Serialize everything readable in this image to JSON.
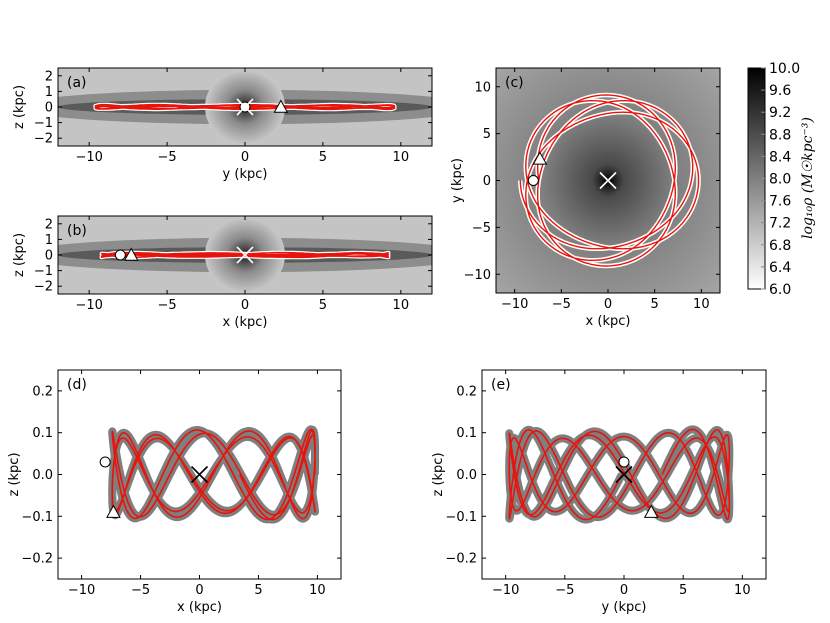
{
  "chart_data": [
    {
      "panel": "(a)",
      "type": "line",
      "xlabel": "y (kpc)",
      "ylabel": "z (kpc)",
      "xlim": [
        -12,
        12
      ],
      "ylim": [
        -2.5,
        2.5
      ],
      "xticks": [
        -10,
        -5,
        0,
        5,
        10
      ],
      "yticks": [
        -2,
        -1,
        0,
        1,
        2
      ],
      "background": "density-map",
      "markers": [
        {
          "shape": "circle",
          "x": 0,
          "y": 0
        },
        {
          "shape": "x",
          "x": 0,
          "y": 0
        },
        {
          "shape": "triangle",
          "x": 2.3,
          "y": 0
        }
      ]
    },
    {
      "panel": "(b)",
      "type": "line",
      "xlabel": "x (kpc)",
      "ylabel": "z (kpc)",
      "xlim": [
        -12,
        12
      ],
      "ylim": [
        -2.5,
        2.5
      ],
      "xticks": [
        -10,
        -5,
        0,
        5,
        10
      ],
      "yticks": [
        -2,
        -1,
        0,
        1,
        2
      ],
      "background": "density-map",
      "markers": [
        {
          "shape": "circle",
          "x": -8,
          "y": 0
        },
        {
          "shape": "x",
          "x": 0,
          "y": 0
        },
        {
          "shape": "triangle",
          "x": -7.3,
          "y": 0
        }
      ]
    },
    {
      "panel": "(c)",
      "type": "line",
      "xlabel": "x (kpc)",
      "ylabel": "y (kpc)",
      "xlim": [
        -12,
        12
      ],
      "ylim": [
        -12,
        12
      ],
      "xticks": [
        -10,
        -5,
        0,
        5,
        10
      ],
      "yticks": [
        -10,
        -5,
        0,
        5,
        10
      ],
      "background": "density-map",
      "markers": [
        {
          "shape": "circle",
          "x": -8,
          "y": 0
        },
        {
          "shape": "x",
          "x": 0,
          "y": 0
        },
        {
          "shape": "triangle",
          "x": -7.3,
          "y": 2.3
        }
      ]
    },
    {
      "panel": "(d)",
      "type": "line",
      "xlabel": "x (kpc)",
      "ylabel": "z (kpc)",
      "xlim": [
        -12,
        12
      ],
      "ylim": [
        -0.25,
        0.25
      ],
      "xticks": [
        -10,
        -5,
        0,
        5,
        10
      ],
      "yticks": [
        -0.2,
        -0.1,
        0.0,
        0.1,
        0.2
      ],
      "markers": [
        {
          "shape": "circle",
          "x": -8,
          "y": 0.03
        },
        {
          "shape": "x",
          "x": 0,
          "y": 0
        },
        {
          "shape": "triangle",
          "x": -7.3,
          "y": -0.09
        }
      ]
    },
    {
      "panel": "(e)",
      "type": "line",
      "xlabel": "y (kpc)",
      "ylabel": "z (kpc)",
      "xlim": [
        -12,
        12
      ],
      "ylim": [
        -0.25,
        0.25
      ],
      "xticks": [
        -10,
        -5,
        0,
        5,
        10
      ],
      "yticks": [
        -0.2,
        -0.1,
        0.0,
        0.1,
        0.2
      ],
      "markers": [
        {
          "shape": "circle",
          "x": 0,
          "y": 0.03
        },
        {
          "shape": "x",
          "x": 0,
          "y": 0
        },
        {
          "shape": "triangle",
          "x": 2.3,
          "y": -0.09
        }
      ]
    }
  ],
  "colorbar": {
    "label": "log₁₀ρ (M☉kpc⁻³)",
    "min": 6.0,
    "max": 10.0,
    "ticks": [
      "10.0",
      "9.6",
      "9.2",
      "8.8",
      "8.4",
      "8.0",
      "7.6",
      "7.2",
      "6.8",
      "6.4",
      "6.0"
    ]
  },
  "colors": {
    "orbit": "#e8140c",
    "orbit_shadow_map": "#ffffff",
    "orbit_shadow_plain": "#7f7f7f"
  }
}
